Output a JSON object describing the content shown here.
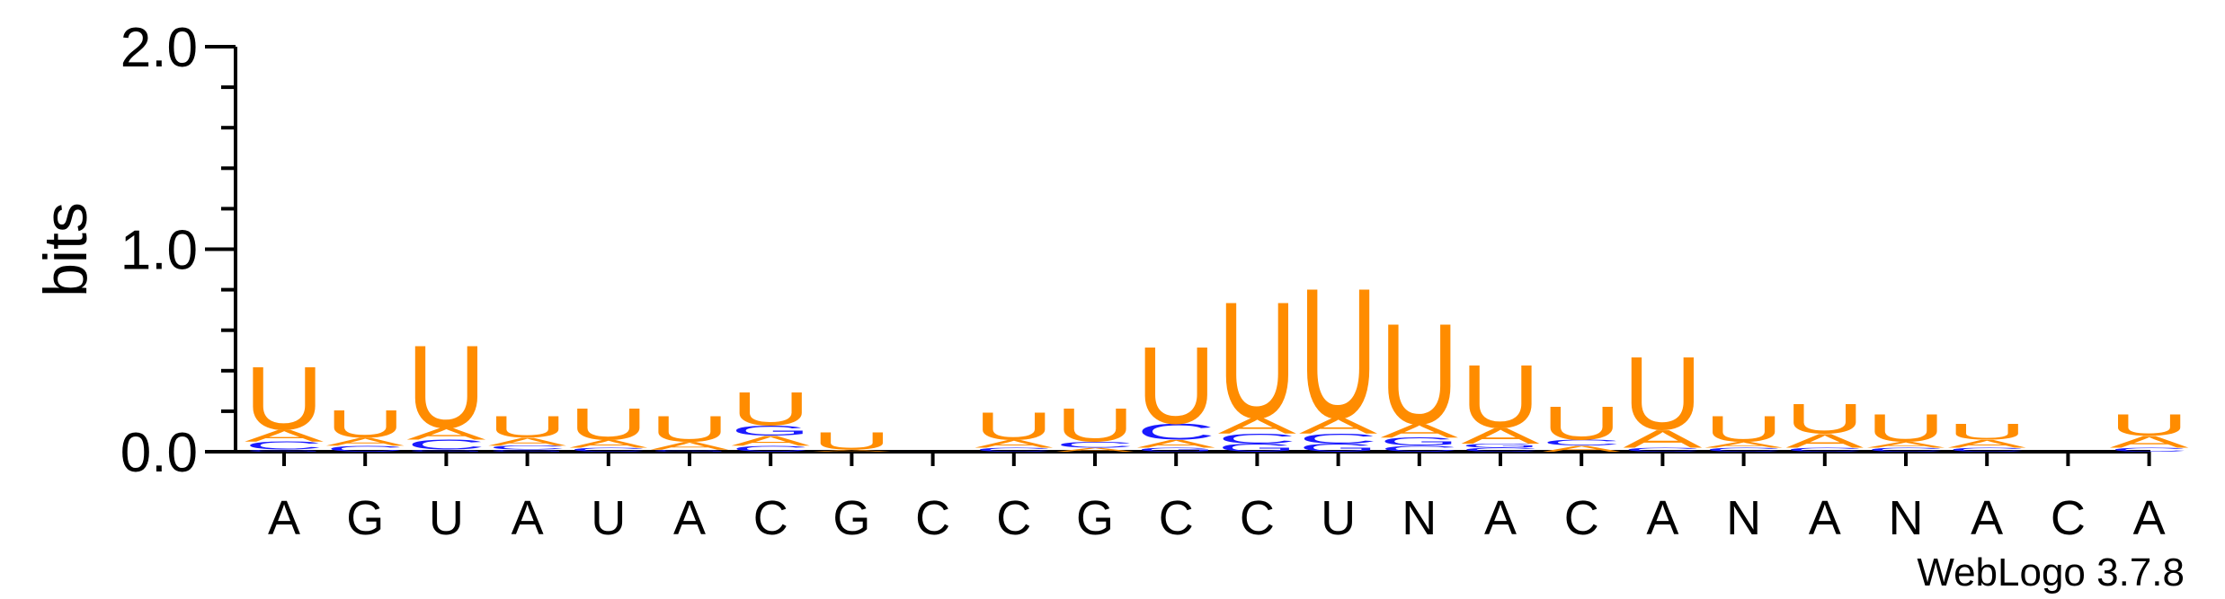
{
  "colors": {
    "U": "#ff8c00",
    "A": "#ff8c00",
    "C": "#1a1aff",
    "G": "#1a1aff",
    "axis": "#000000",
    "text": "#000000"
  },
  "chart_data": {
    "type": "sequence-logo",
    "ylabel": "bits",
    "ylim": [
      0,
      2
    ],
    "yticks": [
      {
        "value": 0,
        "label": "0.0"
      },
      {
        "value": 1,
        "label": "1.0"
      },
      {
        "value": 2,
        "label": "2.0"
      }
    ],
    "yminor_step": 0.2,
    "xlabels": [
      "A",
      "G",
      "U",
      "A",
      "U",
      "A",
      "C",
      "G",
      "C",
      "C",
      "G",
      "C",
      "C",
      "U",
      "N",
      "A",
      "C",
      "A",
      "N",
      "A",
      "N",
      "A",
      "C",
      "A"
    ],
    "credit": "WebLogo 3.7.8",
    "positions": [
      {
        "stack": [
          {
            "letter": "G",
            "bits": 0.01
          },
          {
            "letter": "C",
            "bits": 0.04
          },
          {
            "letter": "A",
            "bits": 0.06
          },
          {
            "letter": "U",
            "bits": 0.32
          }
        ]
      },
      {
        "stack": [
          {
            "letter": "C",
            "bits": 0.03
          },
          {
            "letter": "A",
            "bits": 0.04
          },
          {
            "letter": "U",
            "bits": 0.14
          }
        ]
      },
      {
        "stack": [
          {
            "letter": "G",
            "bits": 0.01
          },
          {
            "letter": "C",
            "bits": 0.05
          },
          {
            "letter": "A",
            "bits": 0.06
          },
          {
            "letter": "U",
            "bits": 0.42
          }
        ]
      },
      {
        "stack": [
          {
            "letter": "G",
            "bits": 0.01
          },
          {
            "letter": "C",
            "bits": 0.02
          },
          {
            "letter": "A",
            "bits": 0.04
          },
          {
            "letter": "U",
            "bits": 0.11
          }
        ]
      },
      {
        "stack": [
          {
            "letter": "C",
            "bits": 0.02
          },
          {
            "letter": "A",
            "bits": 0.04
          },
          {
            "letter": "U",
            "bits": 0.16
          }
        ]
      },
      {
        "stack": [
          {
            "letter": "G",
            "bits": 0.01
          },
          {
            "letter": "A",
            "bits": 0.04
          },
          {
            "letter": "U",
            "bits": 0.13
          }
        ]
      },
      {
        "stack": [
          {
            "letter": "C",
            "bits": 0.03
          },
          {
            "letter": "A",
            "bits": 0.05
          },
          {
            "letter": "G",
            "bits": 0.05
          },
          {
            "letter": "U",
            "bits": 0.17
          }
        ]
      },
      {
        "stack": [
          {
            "letter": "A",
            "bits": 0.01
          },
          {
            "letter": "U",
            "bits": 0.09
          }
        ]
      },
      {
        "stack": []
      },
      {
        "stack": [
          {
            "letter": "C",
            "bits": 0.02
          },
          {
            "letter": "A",
            "bits": 0.04
          },
          {
            "letter": "U",
            "bits": 0.14
          }
        ]
      },
      {
        "stack": [
          {
            "letter": "A",
            "bits": 0.02
          },
          {
            "letter": "C",
            "bits": 0.03
          },
          {
            "letter": "U",
            "bits": 0.17
          }
        ]
      },
      {
        "stack": [
          {
            "letter": "G",
            "bits": 0.02
          },
          {
            "letter": "A",
            "bits": 0.04
          },
          {
            "letter": "C",
            "bits": 0.08
          },
          {
            "letter": "U",
            "bits": 0.39
          }
        ]
      },
      {
        "stack": [
          {
            "letter": "G",
            "bits": 0.04
          },
          {
            "letter": "C",
            "bits": 0.05
          },
          {
            "letter": "A",
            "bits": 0.08
          },
          {
            "letter": "U",
            "bits": 0.59
          }
        ]
      },
      {
        "stack": [
          {
            "letter": "G",
            "bits": 0.04
          },
          {
            "letter": "C",
            "bits": 0.05
          },
          {
            "letter": "A",
            "bits": 0.08
          },
          {
            "letter": "U",
            "bits": 0.66
          }
        ]
      },
      {
        "stack": [
          {
            "letter": "C",
            "bits": 0.03
          },
          {
            "letter": "G",
            "bits": 0.04
          },
          {
            "letter": "A",
            "bits": 0.07
          },
          {
            "letter": "U",
            "bits": 0.51
          }
        ]
      },
      {
        "stack": [
          {
            "letter": "C",
            "bits": 0.02
          },
          {
            "letter": "G",
            "bits": 0.02
          },
          {
            "letter": "A",
            "bits": 0.08
          },
          {
            "letter": "U",
            "bits": 0.32
          }
        ]
      },
      {
        "stack": [
          {
            "letter": "A",
            "bits": 0.03
          },
          {
            "letter": "C",
            "bits": 0.03
          },
          {
            "letter": "U",
            "bits": 0.17
          }
        ]
      },
      {
        "stack": [
          {
            "letter": "C",
            "bits": 0.02
          },
          {
            "letter": "A",
            "bits": 0.09
          },
          {
            "letter": "U",
            "bits": 0.37
          }
        ]
      },
      {
        "stack": [
          {
            "letter": "C",
            "bits": 0.02
          },
          {
            "letter": "A",
            "bits": 0.03
          },
          {
            "letter": "U",
            "bits": 0.13
          }
        ]
      },
      {
        "stack": [
          {
            "letter": "C",
            "bits": 0.02
          },
          {
            "letter": "A",
            "bits": 0.07
          },
          {
            "letter": "U",
            "bits": 0.15
          }
        ]
      },
      {
        "stack": [
          {
            "letter": "C",
            "bits": 0.02
          },
          {
            "letter": "A",
            "bits": 0.03
          },
          {
            "letter": "U",
            "bits": 0.14
          }
        ]
      },
      {
        "stack": [
          {
            "letter": "C",
            "bits": 0.02
          },
          {
            "letter": "A",
            "bits": 0.04
          },
          {
            "letter": "U",
            "bits": 0.08
          }
        ]
      },
      {
        "stack": []
      },
      {
        "stack": [
          {
            "letter": "C",
            "bits": 0.02
          },
          {
            "letter": "A",
            "bits": 0.06
          },
          {
            "letter": "U",
            "bits": 0.11
          }
        ]
      }
    ]
  }
}
